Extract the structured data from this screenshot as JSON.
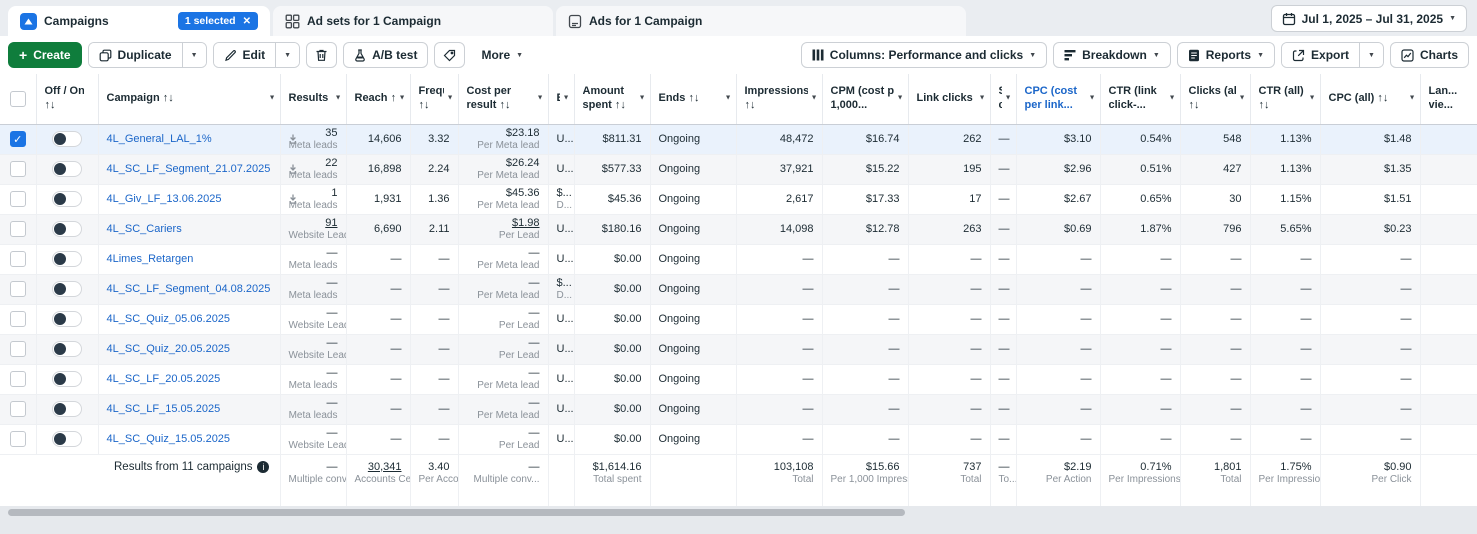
{
  "tabs": {
    "campaigns": {
      "label": "Campaigns",
      "badge": "1 selected",
      "badge_close": "✕"
    },
    "adsets": {
      "label": "Ad sets for 1 Campaign"
    },
    "ads": {
      "label": "Ads for 1 Campaign"
    }
  },
  "date_range": {
    "label": "Jul 1, 2025 – Jul 31, 2025"
  },
  "toolbar": {
    "create": "Create",
    "duplicate": "Duplicate",
    "edit": "Edit",
    "ab_test": "A/B test",
    "more": "More",
    "columns": "Columns: Performance and clicks",
    "breakdown": "Breakdown",
    "reports": "Reports",
    "export": "Export",
    "charts": "Charts"
  },
  "icons": {
    "campaigns_tab": "folder-icon",
    "adsets_tab": "grid-icon",
    "ads_tab": "page-icon",
    "date": "calendar-icon",
    "create": "plus-icon",
    "duplicate": "copy-icon",
    "edit": "pencil-icon",
    "delete": "trash-icon",
    "ab_test": "flask-icon",
    "tag": "tag-icon",
    "columns": "columns-icon",
    "breakdown": "breakdown-icon",
    "reports": "report-icon",
    "export": "export-icon",
    "charts": "chart-icon",
    "results_download": "download-icon",
    "footer_info": "info-icon"
  },
  "table": {
    "headers": [
      {
        "id": "off_on",
        "label": "Off / On",
        "sub": "↑↓",
        "caret": false
      },
      {
        "id": "campaign",
        "label": "Campaign ↑↓",
        "caret": true
      },
      {
        "id": "results",
        "label": "Results ↑↓",
        "caret": true
      },
      {
        "id": "reach",
        "label": "Reach ↑↓",
        "caret": true
      },
      {
        "id": "frequency",
        "label": "Freque...",
        "sub": "↑↓",
        "caret": true
      },
      {
        "id": "cost_per_result",
        "label": "Cost per",
        "sub": "result ↑↓",
        "caret": true
      },
      {
        "id": "budget",
        "label": "B...",
        "caret": true
      },
      {
        "id": "amount_spent",
        "label": "Amount",
        "sub": "spent ↑↓",
        "caret": true
      },
      {
        "id": "ends",
        "label": "Ends ↑↓",
        "caret": true
      },
      {
        "id": "impressions",
        "label": "Impressions",
        "sub": "↑↓",
        "caret": true
      },
      {
        "id": "cpm",
        "label": "CPM (cost per",
        "sub": "1,000...",
        "caret": true
      },
      {
        "id": "link_clicks",
        "label": "Link clicks ↑↓",
        "caret": true
      },
      {
        "id": "schedule",
        "label": "S...",
        "sub": "c...",
        "caret": true
      },
      {
        "id": "cpc_link",
        "label": "CPC (cost",
        "sub": "per link...",
        "caret": true,
        "blue": true
      },
      {
        "id": "ctr_link",
        "label": "CTR (link",
        "sub": "click-...",
        "caret": true
      },
      {
        "id": "clicks_all",
        "label": "Clicks (all)",
        "sub": "↑↓",
        "caret": true
      },
      {
        "id": "ctr_all",
        "label": "CTR (all)",
        "sub": "↑↓",
        "caret": true
      },
      {
        "id": "cpc_all",
        "label": "CPC (all) ↑↓",
        "caret": true
      },
      {
        "id": "landing",
        "label": "Lan...",
        "sub": "vie...",
        "caret": false
      }
    ],
    "rows": [
      {
        "name": "4L_General_LAL_1%",
        "selected": true,
        "results": "35",
        "results_sub": "Meta leads",
        "results_icon": true,
        "reach": "14,606",
        "frequency": "3.32",
        "cost": "$23.18",
        "cost_sub": "Per Meta lead",
        "budget": "U...",
        "budget_sub": "",
        "spent": "$811.31",
        "ends": "Ongoing",
        "impressions": "48,472",
        "cpm": "$16.74",
        "link_clicks": "262",
        "schedule": "—",
        "cpc": "$3.10",
        "ctr": "0.54%",
        "clicks": "548",
        "ctr_all": "1.13%",
        "cpc_all": "$1.48"
      },
      {
        "name": "4L_SC_LF_Segment_21.07.2025",
        "results": "22",
        "results_sub": "Meta leads",
        "results_icon": true,
        "reach": "16,898",
        "frequency": "2.24",
        "cost": "$26.24",
        "cost_sub": "Per Meta lead",
        "budget": "U...",
        "budget_sub": "",
        "spent": "$577.33",
        "ends": "Ongoing",
        "impressions": "37,921",
        "cpm": "$15.22",
        "link_clicks": "195",
        "schedule": "—",
        "cpc": "$2.96",
        "ctr": "0.51%",
        "clicks": "427",
        "ctr_all": "1.13%",
        "cpc_all": "$1.35"
      },
      {
        "name": "4L_Giv_LF_13.06.2025",
        "results": "1",
        "results_sub": "Meta leads",
        "results_icon": true,
        "reach": "1,931",
        "frequency": "1.36",
        "cost": "$45.36",
        "cost_sub": "Per Meta lead",
        "budget": "$...",
        "budget_sub": "D...",
        "spent": "$45.36",
        "ends": "Ongoing",
        "impressions": "2,617",
        "cpm": "$17.33",
        "link_clicks": "17",
        "schedule": "—",
        "cpc": "$2.67",
        "ctr": "0.65%",
        "clicks": "30",
        "ctr_all": "1.15%",
        "cpc_all": "$1.51"
      },
      {
        "name": "4L_SC_Cariers",
        "results": "91",
        "results_u": true,
        "results_sub": "Website Leads",
        "reach": "6,690",
        "frequency": "2.11",
        "cost": "$1.98",
        "cost_u": true,
        "cost_sub": "Per Lead",
        "budget": "U...",
        "budget_sub": "",
        "spent": "$180.16",
        "ends": "Ongoing",
        "impressions": "14,098",
        "cpm": "$12.78",
        "link_clicks": "263",
        "schedule": "—",
        "cpc": "$0.69",
        "ctr": "1.87%",
        "clicks": "796",
        "ctr_all": "5.65%",
        "cpc_all": "$0.23"
      },
      {
        "name": "4Limes_Retargen",
        "results": "—",
        "results_sub": "Meta leads",
        "reach": "—",
        "frequency": "—",
        "cost": "—",
        "cost_sub": "Per Meta lead",
        "budget": "U...",
        "budget_sub": "",
        "spent": "$0.00",
        "ends": "Ongoing",
        "impressions": "—",
        "cpm": "—",
        "link_clicks": "—",
        "schedule": "—",
        "cpc": "—",
        "ctr": "—",
        "clicks": "—",
        "ctr_all": "—",
        "cpc_all": "—"
      },
      {
        "name": "4L_SC_LF_Segment_04.08.2025",
        "results": "—",
        "results_sub": "Meta leads",
        "reach": "—",
        "frequency": "—",
        "cost": "—",
        "cost_sub": "Per Meta lead",
        "budget": "$...",
        "budget_sub": "D...",
        "spent": "$0.00",
        "ends": "Ongoing",
        "impressions": "—",
        "cpm": "—",
        "link_clicks": "—",
        "schedule": "—",
        "cpc": "—",
        "ctr": "—",
        "clicks": "—",
        "ctr_all": "—",
        "cpc_all": "—"
      },
      {
        "name": "4L_SC_Quiz_05.06.2025",
        "results": "—",
        "results_sub": "Website Lead",
        "reach": "—",
        "frequency": "—",
        "cost": "—",
        "cost_sub": "Per Lead",
        "budget": "U...",
        "budget_sub": "",
        "spent": "$0.00",
        "ends": "Ongoing",
        "impressions": "—",
        "cpm": "—",
        "link_clicks": "—",
        "schedule": "—",
        "cpc": "—",
        "ctr": "—",
        "clicks": "—",
        "ctr_all": "—",
        "cpc_all": "—"
      },
      {
        "name": "4L_SC_Quiz_20.05.2025",
        "results": "—",
        "results_sub": "Website Lead",
        "reach": "—",
        "frequency": "—",
        "cost": "—",
        "cost_sub": "Per Lead",
        "budget": "U...",
        "budget_sub": "",
        "spent": "$0.00",
        "ends": "Ongoing",
        "impressions": "—",
        "cpm": "—",
        "link_clicks": "—",
        "schedule": "—",
        "cpc": "—",
        "ctr": "—",
        "clicks": "—",
        "ctr_all": "—",
        "cpc_all": "—"
      },
      {
        "name": "4L_SC_LF_20.05.2025",
        "results": "—",
        "results_sub": "Meta leads",
        "reach": "—",
        "frequency": "—",
        "cost": "—",
        "cost_sub": "Per Meta lead",
        "budget": "U...",
        "budget_sub": "",
        "spent": "$0.00",
        "ends": "Ongoing",
        "impressions": "—",
        "cpm": "—",
        "link_clicks": "—",
        "schedule": "—",
        "cpc": "—",
        "ctr": "—",
        "clicks": "—",
        "ctr_all": "—",
        "cpc_all": "—"
      },
      {
        "name": "4L_SC_LF_15.05.2025",
        "results": "—",
        "results_sub": "Meta leads",
        "reach": "—",
        "frequency": "—",
        "cost": "—",
        "cost_sub": "Per Meta lead",
        "budget": "U...",
        "budget_sub": "",
        "spent": "$0.00",
        "ends": "Ongoing",
        "impressions": "—",
        "cpm": "—",
        "link_clicks": "—",
        "schedule": "—",
        "cpc": "—",
        "ctr": "—",
        "clicks": "—",
        "ctr_all": "—",
        "cpc_all": "—"
      },
      {
        "name": "4L_SC_Quiz_15.05.2025",
        "results": "—",
        "results_sub": "Website Lead",
        "reach": "—",
        "frequency": "—",
        "cost": "—",
        "cost_sub": "Per Lead",
        "budget": "U...",
        "budget_sub": "",
        "spent": "$0.00",
        "ends": "Ongoing",
        "impressions": "—",
        "cpm": "—",
        "link_clicks": "—",
        "schedule": "—",
        "cpc": "—",
        "ctr": "—",
        "clicks": "—",
        "ctr_all": "—",
        "cpc_all": "—"
      }
    ],
    "footer": {
      "label": "Results from 11 campaigns",
      "cells": [
        {
          "v": "—",
          "sub": "Multiple conversions"
        },
        {
          "v": "30,341",
          "sub": "Accounts Cen...",
          "u": true
        },
        {
          "v": "3.40",
          "sub": "Per Accounts..."
        },
        {
          "v": "—",
          "sub": "Multiple conv..."
        },
        {
          "v": "",
          "sub": ""
        },
        {
          "v": "$1,614.16",
          "sub": "Total spent"
        },
        {
          "v": "",
          "sub": ""
        },
        {
          "v": "103,108",
          "sub": "Total"
        },
        {
          "v": "$15.66",
          "sub": "Per 1,000 Impressi..."
        },
        {
          "v": "737",
          "sub": "Total"
        },
        {
          "v": "—",
          "sub": "To..."
        },
        {
          "v": "$2.19",
          "sub": "Per Action"
        },
        {
          "v": "0.71%",
          "sub": "Per Impressions"
        },
        {
          "v": "1,801",
          "sub": "Total"
        },
        {
          "v": "1.75%",
          "sub": "Per Impressions"
        },
        {
          "v": "$0.90",
          "sub": "Per Click"
        },
        {
          "v": "",
          "sub": ""
        }
      ]
    }
  }
}
